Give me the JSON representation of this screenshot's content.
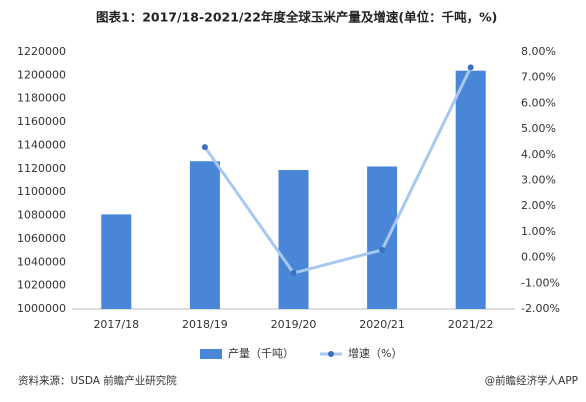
{
  "chart_data": {
    "type": "bar",
    "title": "图表1：2017/18-2021/22年度全球玉米产量及增速(单位：千吨，%)",
    "categories": [
      "2017/18",
      "2018/19",
      "2019/20",
      "2020/21",
      "2021/22"
    ],
    "series": [
      {
        "name": "产量（千吨）",
        "type": "bar",
        "color": "#4a86d8",
        "values": [
          1081000,
          1126500,
          1119000,
          1122000,
          1204000
        ]
      },
      {
        "name": "增速（%）",
        "type": "line",
        "axis": "y2",
        "color": "#a9c8ef",
        "marker_color": "#3a6fc4",
        "values": [
          null,
          4.3,
          -0.6,
          0.3,
          7.4
        ]
      }
    ],
    "ylim": [
      1000000,
      1220000
    ],
    "yticks": [
      1000000,
      1020000,
      1040000,
      1060000,
      1080000,
      1100000,
      1120000,
      1140000,
      1160000,
      1180000,
      1200000,
      1220000
    ],
    "y2lim": [
      -2,
      8
    ],
    "y2ticks": [
      {
        "value": -2,
        "label": "-2.00%"
      },
      {
        "value": -1,
        "label": "-1.00%"
      },
      {
        "value": 0,
        "label": "0.00%"
      },
      {
        "value": 1,
        "label": "1.00%"
      },
      {
        "value": 2,
        "label": "2.00%"
      },
      {
        "value": 3,
        "label": "3.00%"
      },
      {
        "value": 4,
        "label": "4.00%"
      },
      {
        "value": 5,
        "label": "5.00%"
      },
      {
        "value": 6,
        "label": "6.00%"
      },
      {
        "value": 7,
        "label": "7.00%"
      },
      {
        "value": 8,
        "label": "8.00%"
      }
    ],
    "legend": "bottom",
    "source": "资料来源：USDA 前瞻产业研究院",
    "credit": "@前瞻经济学人APP"
  }
}
